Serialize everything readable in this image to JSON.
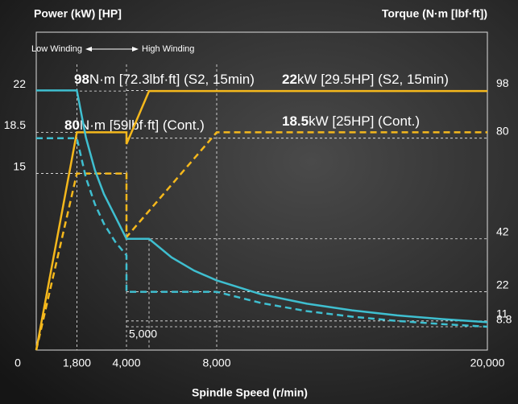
{
  "chart_data": {
    "type": "line",
    "y_title": "Power (kW) [HP]",
    "y2_title": "Torque (N·m [lbf·ft])",
    "x_title": "Spindle Speed (r/min)",
    "xlim": [
      0,
      20000
    ],
    "xticks": [
      0,
      {
        "value": 1800,
        "label": "1,800"
      },
      {
        "value": 4000,
        "label": "4,000"
      },
      {
        "value": 8000,
        "label": "8,000"
      },
      {
        "value": 20000,
        "label": "20,000"
      }
    ],
    "ylim": [
      0,
      27
    ],
    "yticks": [
      15,
      18.5,
      22
    ],
    "y2lim": [
      0,
      120
    ],
    "y2ticks": [
      8.8,
      11,
      22,
      42,
      80,
      98
    ],
    "grid": true,
    "series": [
      {
        "color": "#f5b81c",
        "dashed": false,
        "x": [
          0,
          1800,
          4000,
          4000,
          5000,
          20000
        ],
        "values": [
          0,
          18.5,
          18.5,
          17.5,
          22,
          22
        ]
      },
      {
        "color": "#f5b81c",
        "dashed": true,
        "x": [
          0,
          1800,
          4000,
          4000,
          8000,
          20000
        ],
        "values": [
          0,
          15,
          15,
          9.6,
          18.5,
          18.5
        ]
      },
      {
        "color": "#3fbfd0",
        "dashed": false,
        "axis": "y2",
        "x": [
          0,
          1800,
          2200,
          2600,
          3000,
          3500,
          4000,
          5000,
          6000,
          7000,
          8000,
          10000,
          12000,
          14000,
          16000,
          18000,
          20000
        ],
        "values": [
          98,
          98,
          80.3,
          67.9,
          58.9,
          50.5,
          42,
          42,
          35,
          30,
          26.3,
          21,
          17.5,
          15,
          13.1,
          11.7,
          10.5
        ]
      },
      {
        "color": "#3fbfd0",
        "dashed": true,
        "axis": "y2",
        "x": [
          0,
          1800,
          2200,
          2600,
          3000,
          3500,
          4000,
          4000,
          8000,
          10000,
          12000,
          14000,
          16000,
          18000,
          20000
        ],
        "values": [
          80,
          80,
          65.1,
          55.1,
          47.7,
          40.9,
          35.8,
          22,
          22,
          17.7,
          14.7,
          12.6,
          11,
          9.8,
          8.8
        ]
      }
    ],
    "marker": {
      "value": 5000,
      "label": "5,000"
    },
    "winding_low": "Low Winding",
    "winding_high": "High Winding",
    "annotations": [
      {
        "bold": "98",
        "text": "N·m [72.3lbf·ft] (S2, 15min)"
      },
      {
        "bold": "22",
        "text": "kW [29.5HP] (S2, 15min)"
      },
      {
        "bold": "80",
        "text": "N·m [59lbf·ft] (Cont.)"
      },
      {
        "bold": "18.5",
        "text": "kW [25HP] (Cont.)"
      }
    ]
  }
}
